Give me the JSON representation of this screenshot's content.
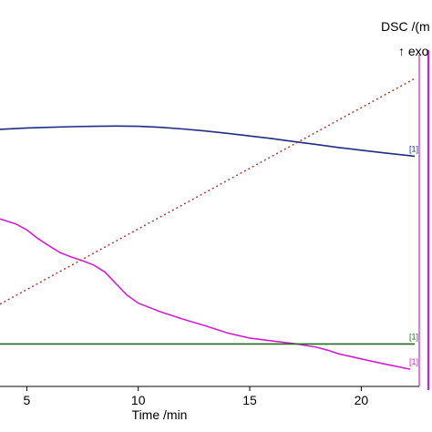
{
  "chart_data": {
    "type": "line",
    "xlabel": "Time /min",
    "ylabel": "DSC /(m",
    "exo_label": "↑ exo",
    "xlim": [
      3.8,
      22.6
    ],
    "ylim": [
      0,
      100
    ],
    "x_ticks": [
      5,
      10,
      15,
      20
    ],
    "x_tick_labels": [
      "5",
      "10",
      "15",
      "20"
    ],
    "grid": false,
    "series": [
      {
        "key": "blue",
        "tag": "[1]",
        "color": "#1f2d86",
        "style": "solid",
        "x": [
          3.8,
          5,
          6,
          7,
          8,
          9,
          10,
          11,
          12,
          13,
          14,
          15,
          16,
          17,
          18,
          19,
          20,
          21,
          22.4
        ],
        "y": [
          77.5,
          77.9,
          78.1,
          78.3,
          78.4,
          78.5,
          78.4,
          78.1,
          77.6,
          77.0,
          76.3,
          75.5,
          74.7,
          73.8,
          72.9,
          72.0,
          71.2,
          70.4,
          69.4
        ]
      },
      {
        "key": "magenta",
        "tag": "[1]",
        "color": "#d21fd2",
        "style": "solid",
        "x": [
          3.8,
          4.5,
          5,
          5.5,
          6,
          6.5,
          7,
          7.5,
          8,
          8.5,
          9,
          9.5,
          10,
          11,
          12,
          13,
          14,
          15,
          16,
          17,
          18,
          18.5,
          19,
          20,
          21,
          22.2
        ],
        "y": [
          50.5,
          49.0,
          47.2,
          44.6,
          42.4,
          40.3,
          39.0,
          37.9,
          36.6,
          34.5,
          31.0,
          27.5,
          25.1,
          22.5,
          20.3,
          18.3,
          16.1,
          14.6,
          13.7,
          12.9,
          11.8,
          10.9,
          9.8,
          8.3,
          6.8,
          5.2
        ]
      },
      {
        "key": "green",
        "tag": "[1]",
        "color": "#1e6d1e",
        "style": "solid",
        "x": [
          3.8,
          22.4
        ],
        "y": [
          12.8,
          12.8
        ]
      },
      {
        "key": "temperature",
        "tag": "",
        "color": "#b0302a",
        "style": "dotted",
        "x": [
          3.8,
          22.4
        ],
        "y": [
          24.8,
          92.8
        ]
      }
    ]
  }
}
